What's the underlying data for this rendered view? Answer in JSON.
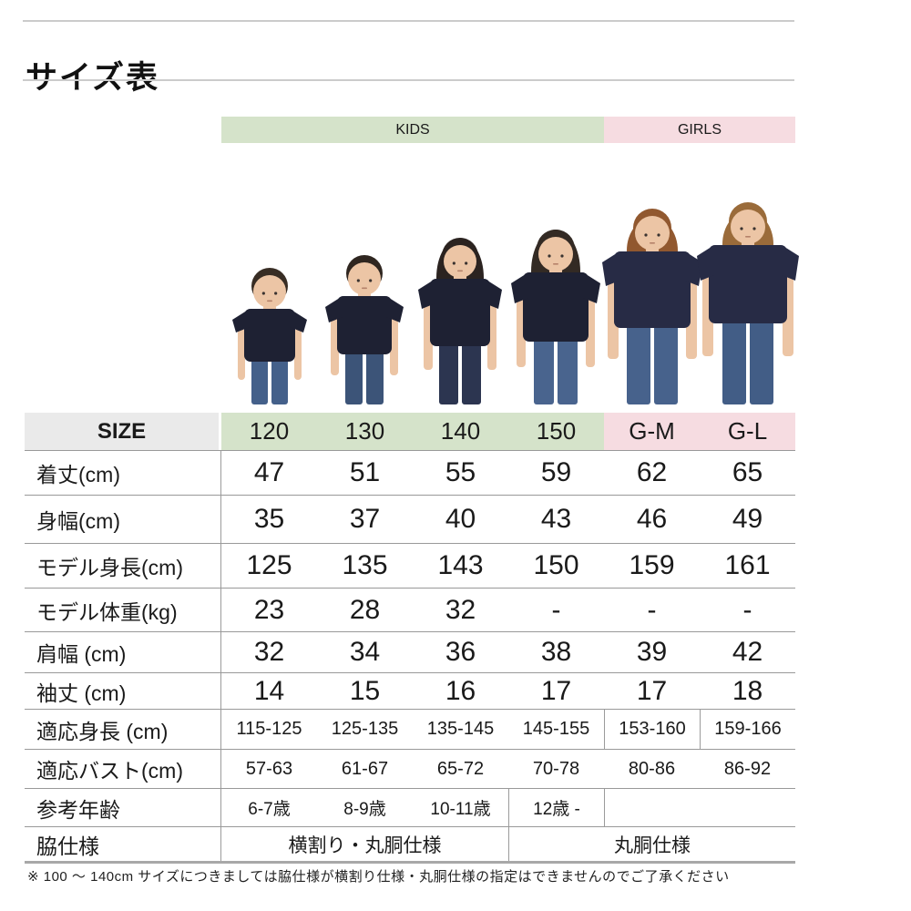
{
  "page": {
    "title": "サイズ表",
    "footnote": "※ 100 ～ 140cm サイズにつきましては脇仕様が横割り仕様・丸胴仕様の指定はできませんのでご了承ください"
  },
  "groups": {
    "kids_label": "KIDS",
    "girls_label": "GIRLS"
  },
  "colors": {
    "kids_bg": "#d5e3ca",
    "girls_bg": "#f6dce1",
    "size_header_bg": "#eaeaea",
    "rule_gray": "#9b9b9b",
    "shirt_navy": "#1e2133",
    "woman_shirt_navy": "#272b45",
    "skin": "#ecc5a5"
  },
  "table": {
    "size_label": "SIZE",
    "columns": [
      {
        "label": "120",
        "group": "kids"
      },
      {
        "label": "130",
        "group": "kids"
      },
      {
        "label": "140",
        "group": "kids"
      },
      {
        "label": "150",
        "group": "kids"
      },
      {
        "label": "G-M",
        "group": "girls"
      },
      {
        "label": "G-L",
        "group": "girls"
      }
    ],
    "rows": [
      {
        "label": "着丈(cm)",
        "values": [
          "47",
          "51",
          "55",
          "59",
          "62",
          "65"
        ]
      },
      {
        "label": "身幅(cm)",
        "values": [
          "35",
          "37",
          "40",
          "43",
          "46",
          "49"
        ]
      },
      {
        "label": "モデル身長(cm)",
        "values": [
          "125",
          "135",
          "143",
          "150",
          "159",
          "161"
        ]
      },
      {
        "label": "モデル体重(kg)",
        "values": [
          "23",
          "28",
          "32",
          "-",
          "-",
          "-"
        ]
      },
      {
        "label": "肩幅 (cm)",
        "values": [
          "32",
          "34",
          "36",
          "38",
          "39",
          "42"
        ]
      },
      {
        "label": "袖丈 (cm)",
        "values": [
          "14",
          "15",
          "16",
          "17",
          "17",
          "18"
        ]
      },
      {
        "label": "適応身長 (cm)",
        "values": [
          "115-125",
          "125-135",
          "135-145",
          "145-155",
          "153-160",
          "159-166"
        ]
      },
      {
        "label": "適応バスト(cm)",
        "values": [
          "57-63",
          "61-67",
          "65-72",
          "70-78",
          "80-86",
          "86-92"
        ]
      },
      {
        "label": "参考年齢",
        "values": [
          "6-7歳",
          "8-9歳",
          "10-11歳",
          "12歳 -",
          "",
          ""
        ]
      },
      {
        "label": "脇仕様",
        "merged": [
          {
            "text": "横割り・丸胴仕様",
            "span": 3
          },
          {
            "text": "丸胴仕様",
            "span": 3
          }
        ]
      }
    ]
  },
  "models": [
    {
      "size": "120",
      "person": "boy",
      "hair": "#382d24",
      "jeans": "#44608a"
    },
    {
      "size": "130",
      "person": "boy",
      "hair": "#2f2620",
      "jeans": "#3c5478"
    },
    {
      "size": "140",
      "person": "girl",
      "hair": "#2b2320",
      "jeans": "#2c3550"
    },
    {
      "size": "150",
      "person": "girl",
      "hair": "#332a24",
      "jeans": "#49648e"
    },
    {
      "size": "G-M",
      "person": "woman",
      "hair": "#91582f",
      "jeans": "#47628c"
    },
    {
      "size": "G-L",
      "person": "woman",
      "hair": "#9a6b3a",
      "jeans": "#425d86"
    }
  ]
}
